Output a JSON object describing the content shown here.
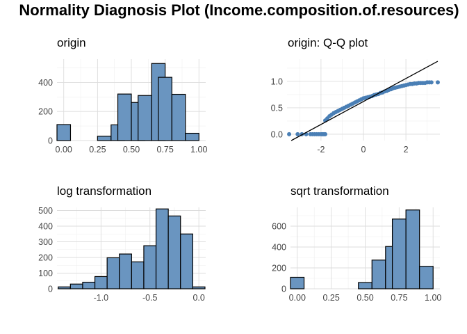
{
  "title": "Normality Diagnosis Plot (Income.composition.of.resources)",
  "chart_data": [
    {
      "panel": "origin",
      "type": "bar",
      "title": "origin",
      "xlabel": "",
      "ylabel": "",
      "xlim": [
        -0.05,
        1.05
      ],
      "ylim": [
        0,
        560
      ],
      "x_ticks": [
        0,
        0.25,
        0.5,
        0.75,
        1
      ],
      "x_tick_labels": [
        "0.00",
        "0.25",
        "0.50",
        "0.75",
        "1.00"
      ],
      "y_ticks": [
        0,
        200,
        400
      ],
      "y_tick_labels": [
        "0",
        "200",
        "400"
      ],
      "grid": true,
      "bin_width": 0.1,
      "bins": [
        {
          "center": 0.0,
          "count": 110
        },
        {
          "center": 0.1,
          "count": 0
        },
        {
          "center": 0.2,
          "count": 0
        },
        {
          "center": 0.3,
          "count": 30
        },
        {
          "center": 0.4,
          "count": 108
        },
        {
          "center": 0.45,
          "count": 320
        },
        {
          "center": 0.55,
          "count": 262
        },
        {
          "center": 0.6,
          "count": 310
        },
        {
          "center": 0.7,
          "count": 530
        },
        {
          "center": 0.75,
          "count": 435
        },
        {
          "center": 0.85,
          "count": 318
        },
        {
          "center": 0.95,
          "count": 50
        }
      ]
    },
    {
      "panel": "qq",
      "type": "scatter",
      "title": "origin: Q-Q plot",
      "xlabel": "",
      "ylabel": "",
      "xlim": [
        -3.6,
        3.6
      ],
      "ylim": [
        -0.12,
        1.42
      ],
      "x_ticks": [
        -2,
        0,
        2
      ],
      "x_tick_labels": [
        "-2",
        "0",
        "2"
      ],
      "y_ticks": [
        0,
        0.5,
        1
      ],
      "y_tick_labels": [
        "0.0",
        "0.5",
        "1.0"
      ],
      "grid": true,
      "reference_line": {
        "x": [
          -3.4,
          3.5
        ],
        "y": [
          -0.12,
          1.38
        ]
      },
      "points": [
        [
          -3.5,
          0.0
        ],
        [
          -3.1,
          0.0
        ],
        [
          -2.9,
          0.0
        ],
        [
          -2.7,
          0.0
        ],
        [
          -2.5,
          0.0
        ],
        [
          -2.4,
          0.0
        ],
        [
          -2.3,
          0.0
        ],
        [
          -2.2,
          0.0
        ],
        [
          -2.1,
          0.0
        ],
        [
          -2.0,
          0.0
        ],
        [
          -1.95,
          0.0
        ],
        [
          -1.9,
          0.0
        ],
        [
          -1.85,
          0.0
        ],
        [
          -1.8,
          0.0
        ],
        [
          -1.8,
          0.26
        ],
        [
          -1.7,
          0.3
        ],
        [
          -1.6,
          0.34
        ],
        [
          -1.5,
          0.37
        ],
        [
          -1.4,
          0.4
        ],
        [
          -1.3,
          0.42
        ],
        [
          -1.2,
          0.44
        ],
        [
          -1.1,
          0.46
        ],
        [
          -1.0,
          0.48
        ],
        [
          -0.9,
          0.5
        ],
        [
          -0.8,
          0.52
        ],
        [
          -0.7,
          0.54
        ],
        [
          -0.6,
          0.56
        ],
        [
          -0.5,
          0.58
        ],
        [
          -0.4,
          0.6
        ],
        [
          -0.3,
          0.62
        ],
        [
          -0.2,
          0.64
        ],
        [
          -0.1,
          0.66
        ],
        [
          0.0,
          0.68
        ],
        [
          0.1,
          0.69
        ],
        [
          0.2,
          0.7
        ],
        [
          0.3,
          0.71
        ],
        [
          0.4,
          0.72
        ],
        [
          0.5,
          0.74
        ],
        [
          0.6,
          0.75
        ],
        [
          0.7,
          0.76
        ],
        [
          0.8,
          0.78
        ],
        [
          0.9,
          0.79
        ],
        [
          1.0,
          0.81
        ],
        [
          1.1,
          0.82
        ],
        [
          1.2,
          0.84
        ],
        [
          1.3,
          0.85
        ],
        [
          1.4,
          0.87
        ],
        [
          1.5,
          0.88
        ],
        [
          1.6,
          0.89
        ],
        [
          1.7,
          0.9
        ],
        [
          1.8,
          0.91
        ],
        [
          1.9,
          0.92
        ],
        [
          2.0,
          0.93
        ],
        [
          2.1,
          0.94
        ],
        [
          2.2,
          0.95
        ],
        [
          2.3,
          0.95
        ],
        [
          2.4,
          0.96
        ],
        [
          2.5,
          0.96
        ],
        [
          2.6,
          0.97
        ],
        [
          2.7,
          0.97
        ],
        [
          2.8,
          0.97
        ],
        [
          2.9,
          0.97
        ],
        [
          3.0,
          0.98
        ],
        [
          3.1,
          0.98
        ],
        [
          3.2,
          0.98
        ],
        [
          3.5,
          0.98
        ]
      ]
    },
    {
      "panel": "log",
      "type": "bar",
      "title": "log transformation",
      "xlabel": "",
      "ylabel": "",
      "xlim": [
        -1.45,
        0.07
      ],
      "ylim": [
        0,
        520
      ],
      "x_ticks": [
        -1.0,
        -0.5,
        0.0
      ],
      "x_tick_labels": [
        "-1.0",
        "-0.5",
        "0.0"
      ],
      "y_ticks": [
        0,
        100,
        200,
        300,
        400,
        500
      ],
      "y_tick_labels": [
        "0",
        "100",
        "200",
        "300",
        "400",
        "500"
      ],
      "grid": true,
      "bin_width": 0.125,
      "bins": [
        {
          "center": -1.375,
          "count": 12
        },
        {
          "center": -1.25,
          "count": 30
        },
        {
          "center": -1.125,
          "count": 42
        },
        {
          "center": -1.0,
          "count": 78
        },
        {
          "center": -0.875,
          "count": 198
        },
        {
          "center": -0.75,
          "count": 222
        },
        {
          "center": -0.625,
          "count": 172
        },
        {
          "center": -0.5,
          "count": 275
        },
        {
          "center": -0.375,
          "count": 510
        },
        {
          "center": -0.25,
          "count": 465
        },
        {
          "center": -0.125,
          "count": 350
        },
        {
          "center": 0.0,
          "count": 12
        }
      ]
    },
    {
      "panel": "sqrt",
      "type": "bar",
      "title": "sqrt transformation",
      "xlabel": "",
      "ylabel": "",
      "xlim": [
        -0.05,
        1.05
      ],
      "ylim": [
        0,
        780
      ],
      "x_ticks": [
        0,
        0.25,
        0.5,
        0.75,
        1
      ],
      "x_tick_labels": [
        "0.00",
        "0.25",
        "0.50",
        "0.75",
        "1.00"
      ],
      "y_ticks": [
        0,
        200,
        400,
        600
      ],
      "y_tick_labels": [
        "0",
        "200",
        "400",
        "600"
      ],
      "grid": true,
      "bin_width": 0.1,
      "bins": [
        {
          "center": 0.0,
          "count": 110
        },
        {
          "center": 0.1,
          "count": 0
        },
        {
          "center": 0.2,
          "count": 0
        },
        {
          "center": 0.3,
          "count": 0
        },
        {
          "center": 0.4,
          "count": 0
        },
        {
          "center": 0.5,
          "count": 60
        },
        {
          "center": 0.6,
          "count": 275
        },
        {
          "center": 0.7,
          "count": 405
        },
        {
          "center": 0.75,
          "count": 668
        },
        {
          "center": 0.85,
          "count": 755
        },
        {
          "center": 0.95,
          "count": 215
        }
      ]
    }
  ]
}
